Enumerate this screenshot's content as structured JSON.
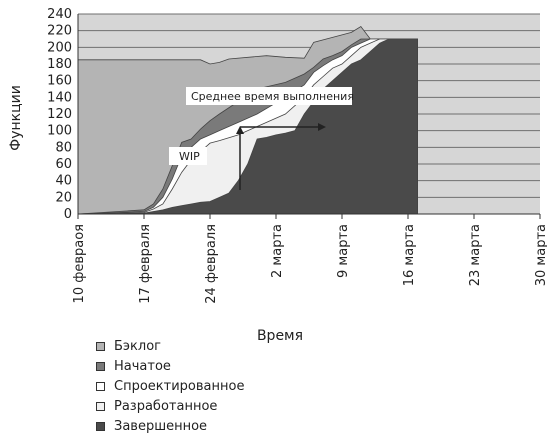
{
  "chart_data": {
    "type": "area",
    "title": "",
    "xlabel": "Время",
    "ylabel": "Функции",
    "ylim": [
      0,
      240
    ],
    "yticks": [
      0,
      20,
      40,
      60,
      80,
      100,
      120,
      140,
      160,
      180,
      200,
      220,
      240
    ],
    "xticks": [
      "10 февраоя",
      "17 февраля",
      "24 февраля",
      "2 марта",
      "9 марта",
      "16 марта",
      "23 марта",
      "30 марта"
    ],
    "grid": true,
    "legend_position": "bottom-left",
    "annotations": [
      {
        "text": "Среднее время выполнения",
        "points_to": "horizontal gap between curves"
      },
      {
        "text": "WIP",
        "points_to": "vertical gap between curves"
      }
    ],
    "series": [
      {
        "name": "Бэклог",
        "color": "#b4b4b4",
        "points": [
          [
            0,
            185
          ],
          [
            13,
            185
          ],
          [
            14,
            180
          ],
          [
            15,
            182
          ],
          [
            16,
            186
          ],
          [
            20,
            190
          ],
          [
            22,
            188
          ],
          [
            24,
            187
          ],
          [
            25,
            206
          ],
          [
            27,
            212
          ],
          [
            29,
            218
          ],
          [
            30,
            225
          ],
          [
            31,
            210
          ],
          [
            35,
            210
          ],
          [
            36,
            210
          ]
        ]
      },
      {
        "name": "Начатое",
        "color": "#7a7a7a",
        "points": [
          [
            0,
            0
          ],
          [
            7,
            5
          ],
          [
            8,
            12
          ],
          [
            9,
            30
          ],
          [
            10,
            58
          ],
          [
            11,
            86
          ],
          [
            12,
            90
          ],
          [
            13,
            102
          ],
          [
            14,
            112
          ],
          [
            15,
            120
          ],
          [
            17,
            135
          ],
          [
            19,
            150
          ],
          [
            22,
            158
          ],
          [
            24,
            168
          ],
          [
            25,
            176
          ],
          [
            26,
            186
          ],
          [
            27,
            190
          ],
          [
            28,
            195
          ],
          [
            29,
            203
          ],
          [
            30,
            210
          ],
          [
            31,
            210
          ],
          [
            35,
            210
          ],
          [
            36,
            210
          ]
        ]
      },
      {
        "name": "Спроектированное",
        "color": "#ffffff",
        "points": [
          [
            0,
            0
          ],
          [
            7,
            3
          ],
          [
            8,
            8
          ],
          [
            9,
            20
          ],
          [
            10,
            42
          ],
          [
            11,
            70
          ],
          [
            12,
            80
          ],
          [
            13,
            90
          ],
          [
            14,
            95
          ],
          [
            15,
            100
          ],
          [
            17,
            110
          ],
          [
            19,
            120
          ],
          [
            22,
            140
          ],
          [
            24,
            155
          ],
          [
            25,
            170
          ],
          [
            26,
            178
          ],
          [
            27,
            185
          ],
          [
            28,
            190
          ],
          [
            29,
            200
          ],
          [
            30,
            205
          ],
          [
            31,
            210
          ],
          [
            35,
            210
          ],
          [
            36,
            210
          ]
        ]
      },
      {
        "name": "Разработанное",
        "color": "#f0f0f0",
        "points": [
          [
            0,
            0
          ],
          [
            7,
            2
          ],
          [
            8,
            6
          ],
          [
            9,
            12
          ],
          [
            10,
            30
          ],
          [
            11,
            50
          ],
          [
            12,
            65
          ],
          [
            13,
            75
          ],
          [
            14,
            85
          ],
          [
            15,
            88
          ],
          [
            17,
            95
          ],
          [
            19,
            105
          ],
          [
            22,
            120
          ],
          [
            24,
            140
          ],
          [
            25,
            155
          ],
          [
            26,
            165
          ],
          [
            27,
            175
          ],
          [
            28,
            180
          ],
          [
            29,
            190
          ],
          [
            30,
            200
          ],
          [
            31,
            205
          ],
          [
            32,
            210
          ],
          [
            35,
            210
          ],
          [
            36,
            210
          ]
        ]
      },
      {
        "name": "Завершенное",
        "color": "#4a4a4a",
        "points": [
          [
            0,
            0
          ],
          [
            7,
            1
          ],
          [
            8,
            3
          ],
          [
            9,
            5
          ],
          [
            10,
            8
          ],
          [
            11,
            10
          ],
          [
            12,
            12
          ],
          [
            13,
            14
          ],
          [
            14,
            15
          ],
          [
            15,
            20
          ],
          [
            16,
            25
          ],
          [
            17,
            40
          ],
          [
            18,
            60
          ],
          [
            19,
            90
          ],
          [
            20,
            92
          ],
          [
            21,
            95
          ],
          [
            22,
            97
          ],
          [
            23,
            100
          ],
          [
            24,
            120
          ],
          [
            25,
            135
          ],
          [
            26,
            150
          ],
          [
            27,
            160
          ],
          [
            28,
            170
          ],
          [
            29,
            180
          ],
          [
            30,
            185
          ],
          [
            31,
            195
          ],
          [
            32,
            205
          ],
          [
            33,
            210
          ],
          [
            35,
            210
          ],
          [
            36,
            210
          ]
        ]
      }
    ]
  }
}
